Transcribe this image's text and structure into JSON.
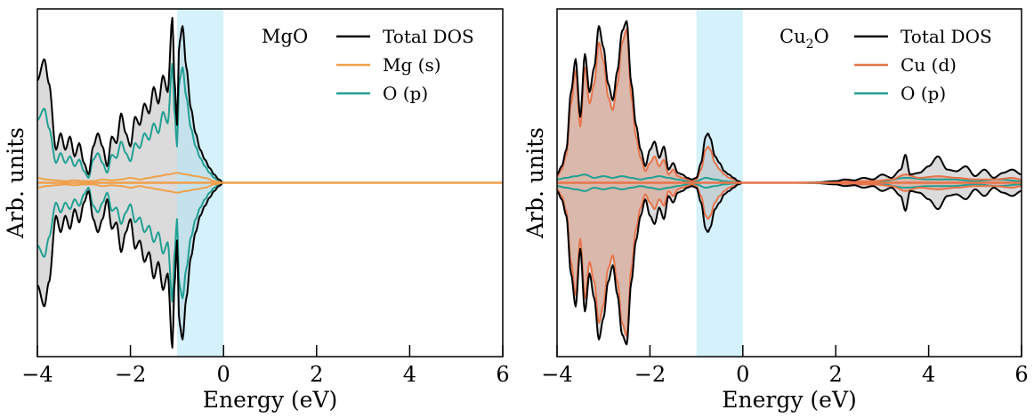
{
  "chart_data": [
    {
      "type": "area",
      "title": "MgO",
      "xlabel": "Energy (eV)",
      "ylabel": "Arb. units",
      "xlim": [
        -4,
        6
      ],
      "ylim": [
        -1,
        1
      ],
      "xticks": [
        -4,
        -2,
        0,
        2,
        4,
        6
      ],
      "xtick_labels": [
        "−4",
        "−2",
        "0",
        "2",
        "4",
        "6"
      ],
      "yticks_shown": false,
      "mirrored_spin_channels": true,
      "highlight_band": {
        "x0": -1.0,
        "x1": 0.0,
        "color": "#b3e5f7"
      },
      "legend_position": "top-right",
      "series": [
        {
          "name": "Total DOS",
          "color": "#000000",
          "fill": "#d9d9d9",
          "x": [
            -4.0,
            -3.85,
            -3.75,
            -3.6,
            -3.5,
            -3.4,
            -3.3,
            -3.2,
            -3.1,
            -3.0,
            -2.9,
            -2.8,
            -2.7,
            -2.6,
            -2.5,
            -2.4,
            -2.3,
            -2.2,
            -2.1,
            -2.0,
            -1.9,
            -1.8,
            -1.7,
            -1.6,
            -1.5,
            -1.4,
            -1.3,
            -1.2,
            -1.1,
            -1.05,
            -1.0,
            -0.95,
            -0.88,
            -0.8,
            -0.7,
            -0.6,
            -0.5,
            -0.4,
            -0.3,
            -0.2,
            -0.1,
            0.0,
            6.0
          ],
          "values": [
            0.62,
            0.75,
            0.6,
            0.2,
            0.3,
            0.2,
            0.28,
            0.16,
            0.24,
            0.12,
            0.05,
            0.22,
            0.3,
            0.22,
            0.1,
            0.28,
            0.24,
            0.42,
            0.3,
            0.22,
            0.4,
            0.35,
            0.48,
            0.42,
            0.58,
            0.48,
            0.65,
            0.55,
            1.0,
            0.6,
            0.35,
            0.85,
            0.95,
            0.7,
            0.45,
            0.3,
            0.2,
            0.14,
            0.09,
            0.05,
            0.02,
            0.0,
            0.0
          ]
        },
        {
          "name": "Mg (s)",
          "color": "#f0a04b",
          "x": [
            -4.0,
            -3.8,
            -3.6,
            -3.4,
            -3.2,
            -3.0,
            -2.8,
            -2.6,
            -2.4,
            -2.2,
            -2.0,
            -1.8,
            -1.6,
            -1.4,
            -1.2,
            -1.0,
            -0.8,
            -0.6,
            -0.4,
            -0.2,
            0.0,
            6.0
          ],
          "values": [
            0.03,
            0.02,
            0.015,
            0.01,
            0.015,
            0.01,
            0.01,
            0.02,
            0.015,
            0.02,
            0.03,
            0.02,
            0.03,
            0.04,
            0.05,
            0.06,
            0.05,
            0.04,
            0.03,
            0.01,
            0.0,
            0.0
          ]
        },
        {
          "name": "O (p)",
          "color": "#22a094",
          "x": [
            -4.0,
            -3.85,
            -3.75,
            -3.6,
            -3.5,
            -3.4,
            -3.3,
            -3.2,
            -3.1,
            -3.0,
            -2.9,
            -2.8,
            -2.7,
            -2.6,
            -2.5,
            -2.4,
            -2.3,
            -2.2,
            -2.1,
            -2.0,
            -1.9,
            -1.8,
            -1.7,
            -1.6,
            -1.5,
            -1.4,
            -1.3,
            -1.2,
            -1.1,
            -1.05,
            -1.0,
            -0.95,
            -0.88,
            -0.8,
            -0.7,
            -0.6,
            -0.5,
            -0.4,
            -0.3,
            -0.2,
            -0.1,
            0.0,
            6.0
          ],
          "values": [
            0.38,
            0.45,
            0.33,
            0.12,
            0.18,
            0.12,
            0.16,
            0.1,
            0.14,
            0.07,
            0.03,
            0.14,
            0.18,
            0.12,
            0.06,
            0.17,
            0.15,
            0.25,
            0.18,
            0.13,
            0.24,
            0.21,
            0.3,
            0.26,
            0.36,
            0.3,
            0.43,
            0.36,
            0.72,
            0.42,
            0.22,
            0.62,
            0.7,
            0.52,
            0.33,
            0.22,
            0.15,
            0.1,
            0.06,
            0.03,
            0.01,
            0.0,
            0.0
          ]
        }
      ]
    },
    {
      "type": "area",
      "title": "Cu",
      "title_subscript": "2",
      "title_suffix": "O",
      "xlabel": "Energy (eV)",
      "ylabel": "Arb. units",
      "xlim": [
        -4,
        6
      ],
      "ylim": [
        -1,
        1
      ],
      "xticks": [
        -4,
        -2,
        0,
        2,
        4,
        6
      ],
      "xtick_labels": [
        "−4",
        "−2",
        "0",
        "2",
        "4",
        "6"
      ],
      "yticks_shown": false,
      "mirrored_spin_channels": true,
      "highlight_band": {
        "x0": -1.0,
        "x1": 0.0,
        "color": "#b3e5f7"
      },
      "legend_position": "top-right",
      "series": [
        {
          "name": "Total DOS",
          "color": "#000000",
          "fill": "#d9d9d9",
          "x": [
            -4.0,
            -3.9,
            -3.8,
            -3.7,
            -3.6,
            -3.5,
            -3.4,
            -3.3,
            -3.2,
            -3.1,
            -3.0,
            -2.9,
            -2.8,
            -2.7,
            -2.6,
            -2.5,
            -2.4,
            -2.3,
            -2.2,
            -2.1,
            -2.0,
            -1.9,
            -1.8,
            -1.7,
            -1.6,
            -1.5,
            -1.4,
            -1.3,
            -1.2,
            -1.1,
            -1.0,
            -0.9,
            -0.8,
            -0.75,
            -0.7,
            -0.6,
            -0.5,
            -0.4,
            -0.3,
            -0.2,
            -0.1,
            0.0,
            1.0,
            1.5,
            2.0,
            2.2,
            2.4,
            2.6,
            2.8,
            3.0,
            3.2,
            3.4,
            3.5,
            3.6,
            3.8,
            4.0,
            4.2,
            4.4,
            4.6,
            4.8,
            5.0,
            5.2,
            5.4,
            5.6,
            5.8,
            6.0
          ],
          "values": [
            0.05,
            0.1,
            0.2,
            0.55,
            0.75,
            0.4,
            0.78,
            0.55,
            0.7,
            0.95,
            0.82,
            0.6,
            0.5,
            0.68,
            0.92,
            0.98,
            0.6,
            0.35,
            0.2,
            0.1,
            0.2,
            0.25,
            0.15,
            0.22,
            0.08,
            0.12,
            0.06,
            0.05,
            0.03,
            0.02,
            0.03,
            0.12,
            0.28,
            0.3,
            0.27,
            0.16,
            0.12,
            0.07,
            0.05,
            0.03,
            0.01,
            0.0,
            0.0,
            0.0,
            0.01,
            0.02,
            0.015,
            0.03,
            0.02,
            0.05,
            0.03,
            0.08,
            0.17,
            0.05,
            0.06,
            0.1,
            0.16,
            0.08,
            0.07,
            0.1,
            0.04,
            0.08,
            0.03,
            0.06,
            0.08,
            0.05
          ]
        },
        {
          "name": "Cu (d)",
          "color": "#e8744b",
          "fill": "#d9b4a6",
          "x": [
            -4.0,
            -3.9,
            -3.8,
            -3.7,
            -3.6,
            -3.5,
            -3.4,
            -3.3,
            -3.2,
            -3.1,
            -3.0,
            -2.9,
            -2.8,
            -2.7,
            -2.6,
            -2.5,
            -2.4,
            -2.3,
            -2.2,
            -2.1,
            -2.0,
            -1.9,
            -1.8,
            -1.7,
            -1.6,
            -1.5,
            -1.4,
            -1.3,
            -1.2,
            -1.1,
            -1.0,
            -0.9,
            -0.8,
            -0.75,
            -0.7,
            -0.6,
            -0.5,
            -0.4,
            -0.3,
            -0.2,
            -0.1,
            0.0,
            1.0,
            1.5,
            2.0,
            2.4,
            2.8,
            3.2,
            3.5,
            3.8,
            4.2,
            4.6,
            5.0,
            5.4,
            5.8,
            6.0
          ],
          "values": [
            0.04,
            0.08,
            0.17,
            0.48,
            0.68,
            0.34,
            0.7,
            0.48,
            0.6,
            0.85,
            0.74,
            0.52,
            0.44,
            0.6,
            0.85,
            0.93,
            0.52,
            0.28,
            0.15,
            0.07,
            0.12,
            0.16,
            0.1,
            0.14,
            0.05,
            0.08,
            0.04,
            0.03,
            0.02,
            0.01,
            0.02,
            0.08,
            0.2,
            0.22,
            0.2,
            0.12,
            0.08,
            0.05,
            0.03,
            0.02,
            0.01,
            0.0,
            0.0,
            0.0,
            0.005,
            0.01,
            0.01,
            0.02,
            0.05,
            0.03,
            0.04,
            0.03,
            0.02,
            0.02,
            0.03,
            0.02
          ]
        },
        {
          "name": "O (p)",
          "color": "#22a094",
          "x": [
            -4.0,
            -3.8,
            -3.6,
            -3.4,
            -3.2,
            -3.0,
            -2.8,
            -2.6,
            -2.4,
            -2.2,
            -2.0,
            -1.8,
            -1.6,
            -1.4,
            -1.2,
            -1.0,
            -0.8,
            -0.6,
            -0.4,
            -0.2,
            0.0,
            1.0,
            2.0,
            3.0,
            3.5,
            4.0,
            4.5,
            5.0,
            5.5,
            6.0
          ],
          "values": [
            0.02,
            0.03,
            0.04,
            0.05,
            0.03,
            0.04,
            0.03,
            0.04,
            0.03,
            0.02,
            0.03,
            0.04,
            0.03,
            0.02,
            0.01,
            0.01,
            0.03,
            0.02,
            0.01,
            0.005,
            0.0,
            0.0,
            0.005,
            0.01,
            0.03,
            0.02,
            0.02,
            0.01,
            0.02,
            0.01
          ]
        }
      ]
    }
  ]
}
